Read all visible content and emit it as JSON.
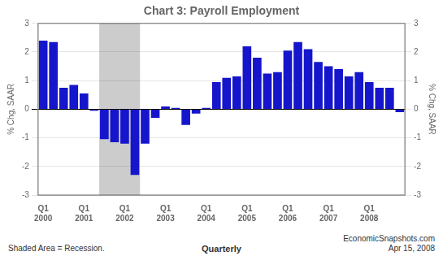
{
  "chart_data": {
    "type": "bar",
    "title": "Chart 3: Payroll Employment",
    "ylabel": "% Chg, SAAR",
    "y2label": "% Chg, SAAR",
    "categories": [
      "Q1\n2000",
      null,
      null,
      null,
      "Q1\n2001",
      null,
      null,
      null,
      "Q1\n2002",
      null,
      null,
      null,
      "Q1\n2003",
      null,
      null,
      null,
      "Q1\n2004",
      null,
      null,
      null,
      "Q1\n2005",
      null,
      null,
      null,
      "Q1\n2006",
      null,
      null,
      null,
      "Q1\n2007",
      null,
      null,
      null,
      "Q1\n2008",
      null,
      null,
      null
    ],
    "values": [
      2.4,
      2.35,
      0.75,
      0.85,
      0.55,
      -0.05,
      -1.05,
      -1.15,
      -1.2,
      -2.3,
      -1.2,
      -0.3,
      0.1,
      0.05,
      -0.55,
      -0.15,
      0.05,
      0.95,
      1.1,
      1.15,
      2.2,
      1.8,
      1.25,
      1.3,
      2.05,
      2.35,
      2.1,
      1.65,
      1.5,
      1.4,
      1.15,
      1.3,
      0.95,
      0.75,
      0.75,
      -0.1
    ],
    "color": "#1515cc",
    "ylim": [
      -3,
      3
    ],
    "yticks": [
      -3,
      -2,
      -1,
      0,
      1,
      2,
      3
    ],
    "y2lim": [
      -3,
      3
    ],
    "y2ticks": [
      -3,
      -2,
      -1,
      0,
      1,
      2,
      3
    ],
    "grid": true,
    "shaded": {
      "start": 5.5,
      "end": 9.5,
      "color": "#cccccc"
    },
    "footnotes": [
      "Shaded Area = Recession.",
      "Quarterly",
      "EconomicSnapshots.com\nApr 15, 2008"
    ]
  }
}
